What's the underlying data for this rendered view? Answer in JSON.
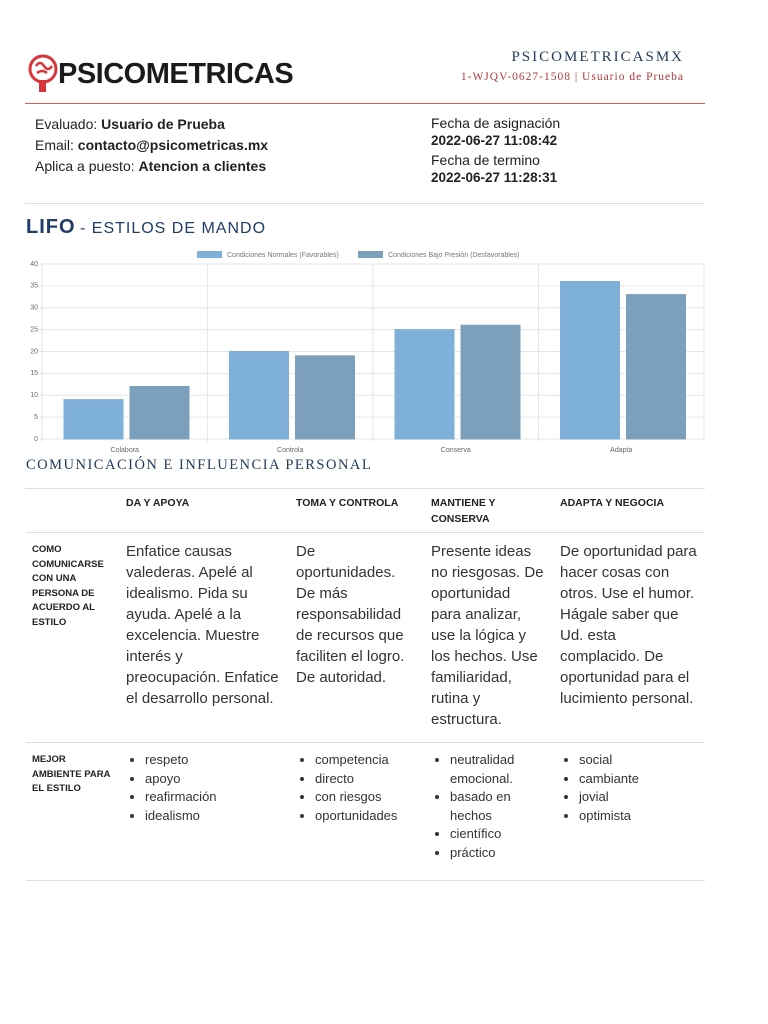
{
  "header": {
    "logo": "PSICOMETRICAS",
    "brand": "PSICOMETRICASMX",
    "reference": "1-WJQV-0627-1508 | Usuario de Prueba"
  },
  "info": {
    "evaluado_label": "Evaluado:",
    "evaluado": "Usuario de Prueba",
    "email_label": "Email:",
    "email": "contacto@psicometricas.mx",
    "puesto_label": "Aplica a puesto:",
    "puesto": "Atencion a clientes",
    "asignacion_label": "Fecha de asignación",
    "asignacion": "2022-06-27 11:08:42",
    "termino_label": "Fecha de termino",
    "termino": "2022-06-27 11:28:31"
  },
  "section": {
    "title": "LIFO",
    "subtitle": "- ESTILOS DE MANDO"
  },
  "chart_data": {
    "type": "bar",
    "categories": [
      "Colabora",
      "Controla",
      "Conserva",
      "Adapta"
    ],
    "series": [
      {
        "name": "Condiciones Normales (Favorables)",
        "color": "#7eb0da",
        "values": [
          9,
          20,
          25,
          36
        ]
      },
      {
        "name": "Condiciones Bajo Presión (Desfavorables)",
        "color": "#7c9fbb",
        "values": [
          12,
          19,
          26,
          33
        ]
      }
    ],
    "ylim": [
      0,
      40
    ],
    "yticks": [
      0,
      5,
      10,
      15,
      20,
      25,
      30,
      35,
      40
    ],
    "grid": true,
    "legend": "top"
  },
  "table": {
    "title": "COMUNICACIÓN E INFLUENCIA PERSONAL",
    "columns": [
      "DA Y APOYA",
      "TOMA Y CONTROLA",
      "MANTIENE Y CONSERVA",
      "ADAPTA Y NEGOCIA"
    ],
    "rows": [
      {
        "label": "COMO COMUNICARSE CON UNA PERSONA DE ACUERDO AL ESTILO",
        "cells": [
          "Enfatice causas valederas. Apelé al idealismo. Pida su ayuda. Apelé a la excelencia. Muestre interés y preocupación. Enfatice el desarrollo personal.",
          "De oportunidades. De más responsabilidad de recursos que faciliten el logro. De autoridad.",
          "Presente ideas no riesgosas. De oportunidad para analizar, use la lógica y los hechos. Use familiaridad, rutina y estructura.",
          "De oportunidad para hacer cosas con otros. Use el humor. Hágale saber que Ud. esta complacido. De oportunidad para el lucimiento personal."
        ]
      },
      {
        "label": "MEJOR AMBIENTE PARA EL ESTILO",
        "cells": [
          [
            "respeto",
            "apoyo",
            "reafirmación",
            "idealismo"
          ],
          [
            "competencia",
            "directo",
            "con riesgos",
            "oportunidades"
          ],
          [
            "neutralidad emocional.",
            "basado en hechos",
            "científico",
            "práctico"
          ],
          [
            "social",
            "cambiante",
            "jovial",
            "optimista"
          ]
        ]
      }
    ]
  }
}
